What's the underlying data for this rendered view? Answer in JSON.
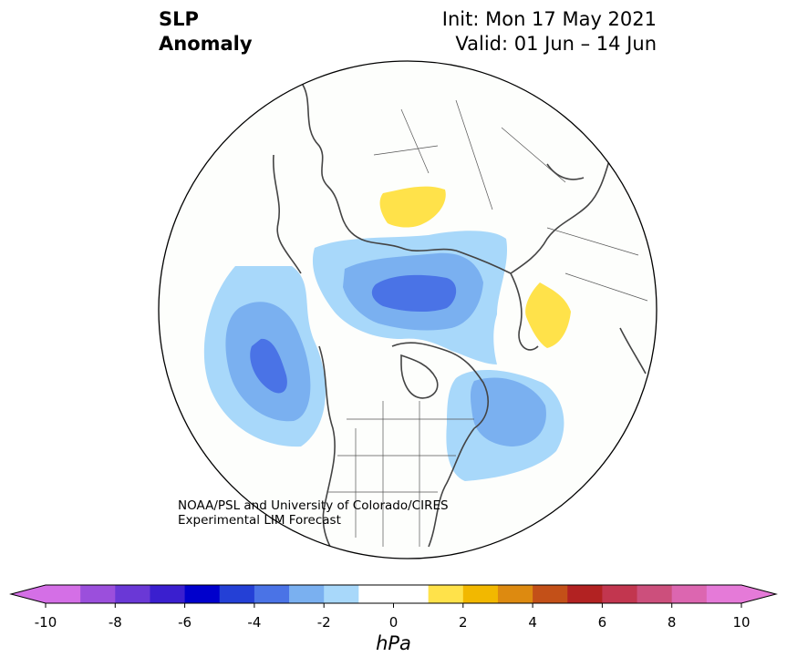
{
  "title": {
    "variable_line1": "SLP",
    "variable_line2": "Anomaly",
    "init": "Init: Mon 17 May 2021",
    "valid": "Valid: 01 Jun – 14 Jun"
  },
  "credit": {
    "line1": "NOAA/PSL and University of Colorado/CIRES",
    "line2": "Experimental LIM Forecast"
  },
  "colorbar": {
    "unit": "hPa",
    "levels": [
      -10,
      -9,
      -8,
      -7,
      -6,
      -5,
      -4,
      -3,
      -2,
      -1,
      1,
      2,
      3,
      4,
      5,
      6,
      7,
      8,
      9,
      10
    ],
    "colors": [
      "#d46fe6",
      "#9b4fdc",
      "#6a38d6",
      "#3a1fcf",
      "#0000cc",
      "#2440d6",
      "#4a73e6",
      "#7ab0f0",
      "#a8d8fa",
      "#ffffff",
      "#ffe24a",
      "#f2b800",
      "#dd8a10",
      "#c35018",
      "#b22222",
      "#c2364f",
      "#cc4f7c",
      "#dc66b0",
      "#e57ad8"
    ],
    "ticks": [
      "-10",
      "-8",
      "-6",
      "-4",
      "-2",
      "0",
      "2",
      "4",
      "6",
      "8",
      "10"
    ],
    "extend_low_color": "#d46fe6",
    "extend_high_color": "#e57ad8"
  },
  "map": {
    "projection": "north polar stereographic",
    "anomaly_features": [
      {
        "name": "negative-anomaly-north-pacific",
        "sign": "negative",
        "min_hpa": -5
      },
      {
        "name": "negative-anomaly-arctic-siberia",
        "sign": "negative",
        "min_hpa": -5
      },
      {
        "name": "negative-anomaly-north-atlantic",
        "sign": "negative",
        "min_hpa": -3
      },
      {
        "name": "positive-anomaly-western-siberia",
        "sign": "positive",
        "max_hpa": 2
      },
      {
        "name": "positive-anomaly-scandinavia",
        "sign": "positive",
        "max_hpa": 2
      }
    ]
  }
}
